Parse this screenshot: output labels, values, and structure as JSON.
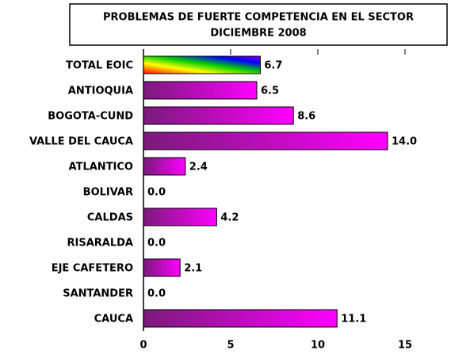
{
  "chart_data": {
    "type": "barh",
    "title": "PROBLEMAS DE FUERTE COMPETENCIA EN EL SECTOR",
    "subtitle": "DICIEMBRE 2008",
    "categories": [
      "TOTAL EOIC",
      "ANTIOQUIA",
      "BOGOTA-CUND",
      "VALLE DEL CAUCA",
      "ATLANTICO",
      "BOLIVAR",
      "CALDAS",
      "RISARALDA",
      "EJE CAFETERO",
      "SANTANDER",
      "CAUCA"
    ],
    "values": [
      6.7,
      6.5,
      8.6,
      14.0,
      2.4,
      0.0,
      4.2,
      0.0,
      2.1,
      0.0,
      11.1
    ],
    "value_labels": [
      "6.7",
      "6.5",
      "8.6",
      "14.0",
      "2.4",
      "0.0",
      "4.2",
      "0.0",
      "2.1",
      "0.0",
      "11.1"
    ],
    "color": "#ff00ff",
    "xlim": [
      0,
      17.5
    ],
    "xticks": [
      0,
      5,
      10,
      15
    ]
  }
}
